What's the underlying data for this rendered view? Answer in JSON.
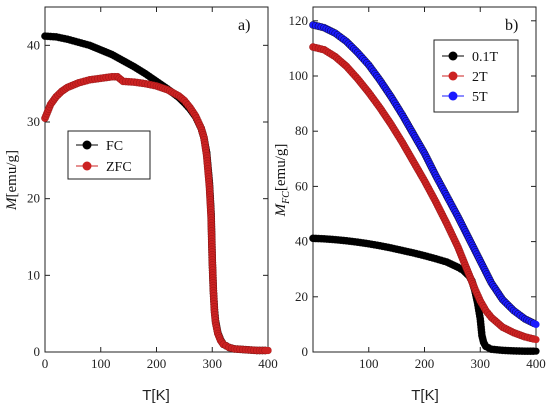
{
  "chart_data": [
    {
      "type": "scatter",
      "panel_label": "a)",
      "ylabel_main": "M",
      "ylabel_sub": "",
      "ylabel_unit": "[emu/g]",
      "xlabel": "T[K]",
      "xlim": [
        0,
        400
      ],
      "ylim": [
        0,
        45
      ],
      "xticks": [
        0,
        100,
        200,
        300,
        400
      ],
      "yticks": [
        0,
        10,
        20,
        30,
        40
      ],
      "legend_position": "left-middle",
      "series": [
        {
          "name": "FC",
          "color": "#000000",
          "points": [
            [
              0,
              41.2
            ],
            [
              20,
              41.1
            ],
            [
              40,
              40.8
            ],
            [
              60,
              40.4
            ],
            [
              80,
              40.0
            ],
            [
              100,
              39.4
            ],
            [
              120,
              38.8
            ],
            [
              140,
              38.0
            ],
            [
              160,
              37.2
            ],
            [
              180,
              36.3
            ],
            [
              200,
              35.3
            ],
            [
              220,
              34.3
            ],
            [
              240,
              33.2
            ],
            [
              250,
              32.5
            ],
            [
              260,
              31.7
            ],
            [
              270,
              30.7
            ],
            [
              280,
              29.2
            ],
            [
              285,
              28.0
            ],
            [
              290,
              26.0
            ],
            [
              295,
              22.0
            ],
            [
              298,
              18.0
            ],
            [
              300,
              12.0
            ],
            [
              302,
              8.0
            ],
            [
              304,
              5.5
            ],
            [
              306,
              4.0
            ],
            [
              310,
              2.5
            ],
            [
              315,
              1.6
            ],
            [
              320,
              1.0
            ],
            [
              330,
              0.6
            ],
            [
              340,
              0.4
            ],
            [
              360,
              0.3
            ],
            [
              380,
              0.2
            ],
            [
              400,
              0.2
            ]
          ]
        },
        {
          "name": "ZFC",
          "color": "#cc2222",
          "points": [
            [
              0,
              30.5
            ],
            [
              10,
              32.3
            ],
            [
              20,
              33.3
            ],
            [
              30,
              34.0
            ],
            [
              40,
              34.5
            ],
            [
              60,
              35.1
            ],
            [
              80,
              35.5
            ],
            [
              100,
              35.7
            ],
            [
              120,
              35.9
            ],
            [
              130,
              35.9
            ],
            [
              140,
              35.3
            ],
            [
              160,
              35.2
            ],
            [
              180,
              35.0
            ],
            [
              200,
              34.7
            ],
            [
              220,
              34.2
            ],
            [
              240,
              33.4
            ],
            [
              250,
              32.8
            ],
            [
              260,
              31.9
            ],
            [
              270,
              30.8
            ],
            [
              280,
              29.2
            ],
            [
              285,
              28.0
            ],
            [
              290,
              25.6
            ],
            [
              295,
              21.5
            ],
            [
              298,
              17.5
            ],
            [
              300,
              12.0
            ],
            [
              302,
              8.0
            ],
            [
              304,
              5.2
            ],
            [
              306,
              3.8
            ],
            [
              310,
              2.4
            ],
            [
              315,
              1.5
            ],
            [
              320,
              1.0
            ],
            [
              330,
              0.6
            ],
            [
              340,
              0.4
            ],
            [
              360,
              0.3
            ],
            [
              380,
              0.2
            ],
            [
              400,
              0.2
            ]
          ]
        }
      ]
    },
    {
      "type": "scatter",
      "panel_label": "b)",
      "ylabel_main": "M",
      "ylabel_sub": "FC",
      "ylabel_unit": "[emu/g]",
      "xlabel": "T[K]",
      "xlim": [
        0,
        400
      ],
      "ylim": [
        0,
        125
      ],
      "xticks": [
        100,
        200,
        300,
        400
      ],
      "yticks": [
        0,
        20,
        40,
        60,
        80,
        100,
        120
      ],
      "legend_position": "top-right",
      "series": [
        {
          "name": "0.1T",
          "color": "#000000",
          "points": [
            [
              0,
              41.2
            ],
            [
              20,
              41.0
            ],
            [
              40,
              40.7
            ],
            [
              60,
              40.3
            ],
            [
              80,
              39.8
            ],
            [
              100,
              39.2
            ],
            [
              120,
              38.5
            ],
            [
              140,
              37.7
            ],
            [
              160,
              36.8
            ],
            [
              180,
              35.9
            ],
            [
              200,
              34.9
            ],
            [
              220,
              33.8
            ],
            [
              240,
              32.6
            ],
            [
              260,
              30.7
            ],
            [
              270,
              29.5
            ],
            [
              280,
              27.5
            ],
            [
              285,
              25.8
            ],
            [
              290,
              22.5
            ],
            [
              295,
              18.0
            ],
            [
              300,
              12.0
            ],
            [
              303,
              6.0
            ],
            [
              306,
              3.5
            ],
            [
              310,
              2.0
            ],
            [
              320,
              1.0
            ],
            [
              340,
              0.6
            ],
            [
              360,
              0.4
            ],
            [
              380,
              0.3
            ],
            [
              400,
              0.3
            ]
          ]
        },
        {
          "name": "2T",
          "color": "#cc2222",
          "points": [
            [
              0,
              110.5
            ],
            [
              20,
              109.5
            ],
            [
              40,
              107.0
            ],
            [
              60,
              103.5
            ],
            [
              80,
              99.0
            ],
            [
              100,
              94.0
            ],
            [
              120,
              88.5
            ],
            [
              140,
              82.5
            ],
            [
              160,
              76.0
            ],
            [
              180,
              69.0
            ],
            [
              200,
              62.0
            ],
            [
              220,
              54.5
            ],
            [
              240,
              46.5
            ],
            [
              260,
              38.0
            ],
            [
              270,
              33.0
            ],
            [
              280,
              28.0
            ],
            [
              290,
              23.0
            ],
            [
              300,
              18.5
            ],
            [
              310,
              15.0
            ],
            [
              320,
              12.5
            ],
            [
              340,
              9.0
            ],
            [
              360,
              7.0
            ],
            [
              380,
              5.5
            ],
            [
              400,
              4.5
            ]
          ]
        },
        {
          "name": "5T",
          "color": "#1a1aff",
          "points": [
            [
              0,
              118.5
            ],
            [
              20,
              117.5
            ],
            [
              40,
              115.5
            ],
            [
              60,
              112.5
            ],
            [
              80,
              108.5
            ],
            [
              100,
              104.0
            ],
            [
              120,
              98.5
            ],
            [
              140,
              92.5
            ],
            [
              160,
              86.0
            ],
            [
              180,
              79.0
            ],
            [
              200,
              72.0
            ],
            [
              220,
              64.0
            ],
            [
              240,
              56.5
            ],
            [
              260,
              49.0
            ],
            [
              280,
              41.0
            ],
            [
              290,
              37.0
            ],
            [
              300,
              33.0
            ],
            [
              310,
              29.0
            ],
            [
              320,
              25.0
            ],
            [
              340,
              19.0
            ],
            [
              360,
              15.0
            ],
            [
              380,
              12.0
            ],
            [
              400,
              10.0
            ]
          ]
        }
      ]
    }
  ]
}
